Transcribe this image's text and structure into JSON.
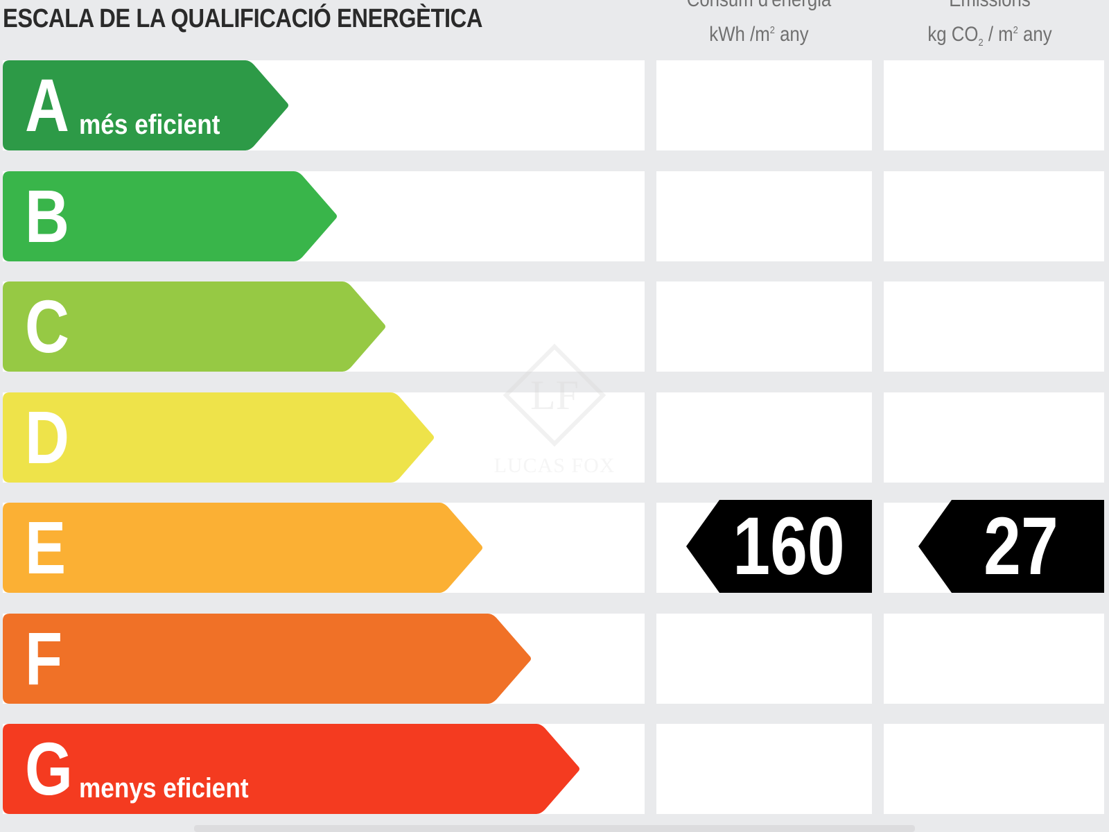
{
  "title": "ESCALA DE LA QUALIFICACIÓ ENERGÈTICA",
  "columns": {
    "energy": {
      "line1": "Consum d'energia",
      "unit_pre": "kWh /m",
      "unit_sup": "2",
      "unit_post": " any"
    },
    "emissions": {
      "line1": "Emissions",
      "unit_pre": "kg CO",
      "unit_sub": "2",
      "unit_mid": " / m",
      "unit_sup": "2",
      "unit_post": " any"
    }
  },
  "ratings": [
    {
      "letter": "A",
      "sub": "més eficient",
      "color": "#2d9a47"
    },
    {
      "letter": "B",
      "sub": "",
      "color": "#39b54a"
    },
    {
      "letter": "C",
      "sub": "",
      "color": "#96c944"
    },
    {
      "letter": "D",
      "sub": "",
      "color": "#eee34a"
    },
    {
      "letter": "E",
      "sub": "",
      "color": "#fbb034"
    },
    {
      "letter": "F",
      "sub": "",
      "color": "#f07127"
    },
    {
      "letter": "G",
      "sub": "menys eficient",
      "color": "#f43b20"
    }
  ],
  "result": {
    "rating": "E",
    "energy_value": "160",
    "emissions_value": "27",
    "marker_color": "#000000"
  },
  "watermark": {
    "text": "LUCAS FOX"
  }
}
